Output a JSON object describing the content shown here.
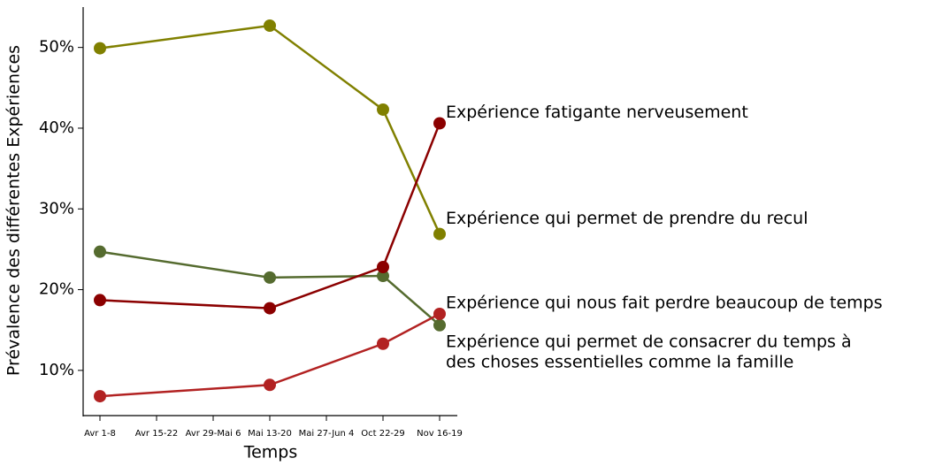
{
  "chart_data": {
    "type": "line",
    "x_label": "Temps",
    "y_label": "Prévalence des différentes Expériences",
    "categories": [
      "Avr 1-8",
      "Avr 15-22",
      "Avr 29-Mai 6",
      "Mai 13-20",
      "Mai 27-Jun 4",
      "Oct 22-29",
      "Nov 16-19"
    ],
    "ylim": [
      4.4,
      55.0
    ],
    "yticks": [
      {
        "value": 10,
        "label": "10%"
      },
      {
        "value": 20,
        "label": "20%"
      },
      {
        "value": 30,
        "label": "30%"
      },
      {
        "value": 40,
        "label": "40%"
      },
      {
        "value": 50,
        "label": "50%"
      }
    ],
    "grid": false,
    "series": [
      {
        "name": "Expérience qui permet de prendre du recul",
        "color": "#808000",
        "x": [
          "Avr 1-8",
          "Mai 13-20",
          "Oct 22-29",
          "Nov 16-19"
        ],
        "values": [
          49.9,
          52.7,
          42.3,
          26.9
        ]
      },
      {
        "name": "Expérience qui permet de consacrer du temps à\ndes choses essentielles comme la famille",
        "color": "#556b2f",
        "x": [
          "Avr 1-8",
          "Mai 13-20",
          "Oct 22-29",
          "Nov 16-19"
        ],
        "values": [
          24.7,
          21.5,
          21.7,
          15.6
        ]
      },
      {
        "name": "Expérience fatigante nerveusement",
        "color": "#8b0000",
        "x": [
          "Avr 1-8",
          "Mai 13-20",
          "Oct 22-29",
          "Nov 16-19"
        ],
        "values": [
          18.7,
          17.7,
          22.8,
          40.6
        ]
      },
      {
        "name": "Expérience qui nous fait perdre beaucoup de temps",
        "color": "#b22222",
        "x": [
          "Avr 1-8",
          "Mai 13-20",
          "Oct 22-29",
          "Nov 16-19"
        ],
        "values": [
          6.8,
          8.2,
          13.3,
          17.0
        ]
      }
    ]
  }
}
